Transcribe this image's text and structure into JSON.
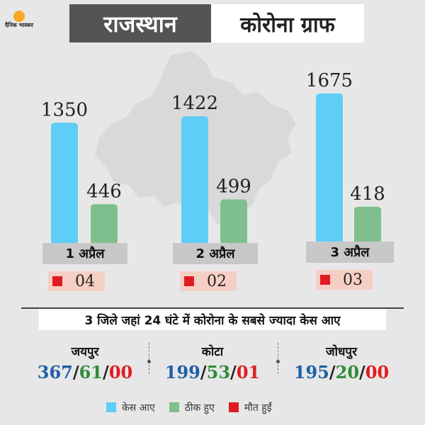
{
  "logo": {
    "text": "दैनिक भास्कर"
  },
  "header": {
    "title_left": "राजस्थान",
    "title_right": "कोरोना ग्राफ"
  },
  "colors": {
    "cases": "#5ecdf7",
    "recovered": "#7fbf8d",
    "deaths": "#e01b24"
  },
  "chart_data": {
    "type": "bar",
    "categories": [
      "1 अप्रैल",
      "2 अप्रैल",
      "3 अप्रैल"
    ],
    "series": [
      {
        "name": "केस आए",
        "values": [
          1350,
          1422,
          1675
        ]
      },
      {
        "name": "ठीक हुए",
        "values": [
          446,
          499,
          418
        ]
      }
    ],
    "deaths": [
      "04",
      "02",
      "03"
    ],
    "ylim": [
      0,
      1750
    ]
  },
  "districts_title": "3 जिले जहां 24 घंटे में कोरोना के सबसे ज्यादा केस आए",
  "districts": [
    {
      "name": "जयपुर",
      "cases": "367",
      "recovered": "61",
      "deaths": "00"
    },
    {
      "name": "कोटा",
      "cases": "199",
      "recovered": "53",
      "deaths": "01"
    },
    {
      "name": "जोधपुर",
      "cases": "195",
      "recovered": "20",
      "deaths": "00"
    }
  ],
  "legend": [
    "केस आए",
    "ठीक हुए",
    "मौत हुईं"
  ]
}
